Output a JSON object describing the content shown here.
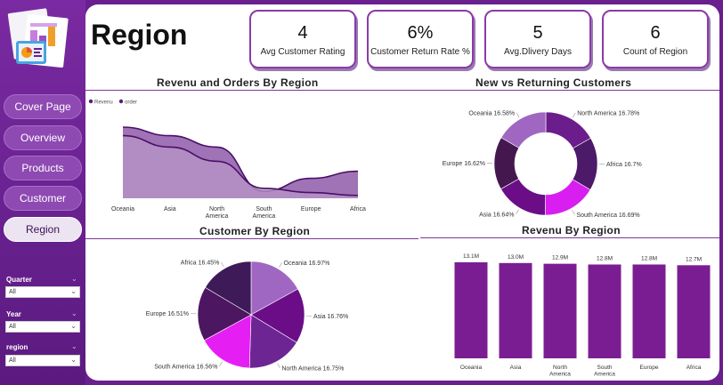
{
  "nav": {
    "items": [
      {
        "label": "Cover Page",
        "active": false
      },
      {
        "label": "Overview",
        "active": false
      },
      {
        "label": "Products",
        "active": false
      },
      {
        "label": "Customer",
        "active": false
      },
      {
        "label": "Region",
        "active": true
      }
    ]
  },
  "filters": [
    {
      "label": "Quarter",
      "value": "All"
    },
    {
      "label": "Year",
      "value": "All"
    },
    {
      "label": "region",
      "value": "All"
    }
  ],
  "page_title": "Region",
  "kpis": [
    {
      "value": "4",
      "label": "Avg Customer Rating"
    },
    {
      "value": "6%",
      "label": "Customer Return Rate %"
    },
    {
      "value": "5",
      "label": "Avg.Dlivery Days"
    },
    {
      "value": "6",
      "label": "Count of Region"
    }
  ],
  "colors": {
    "sidebar": "#6a1f8f",
    "accent": "#5b1a80",
    "bar": "#7b1d92",
    "area_revenue": "#8e5aa8",
    "area_order": "#b796c8"
  },
  "chart_data": [
    {
      "id": "revenue_orders",
      "type": "area",
      "title": "Revenu and Orders By Region",
      "categories": [
        "Oceania",
        "Asia",
        "North America",
        "South America",
        "Europe",
        "Africa"
      ],
      "series": [
        {
          "name": "Revenu",
          "values": [
            100,
            88,
            72,
            10,
            28,
            38
          ]
        },
        {
          "name": "order",
          "values": [
            88,
            72,
            52,
            14,
            8,
            4
          ]
        }
      ],
      "legend_position": "top-left",
      "ylim": [
        0,
        110
      ]
    },
    {
      "id": "new_returning",
      "type": "pie",
      "donut": true,
      "title": "New vs Returning Customers",
      "labels": [
        "North America",
        "Africa",
        "South America",
        "Asia",
        "Europe",
        "Oceania"
      ],
      "values": [
        16.78,
        16.7,
        16.69,
        16.64,
        16.62,
        16.58
      ],
      "display": [
        "North America 16.78%",
        "Africa 16.7%",
        "South America 16.69%",
        "Asia 16.64%",
        "Europe 16.62%",
        "Oceania 16.58%"
      ],
      "colors": [
        "#6c1d8c",
        "#4c1a68",
        "#d81ef0",
        "#6a0d86",
        "#45174f",
        "#a067c2"
      ]
    },
    {
      "id": "customer_region",
      "type": "pie",
      "title": "Customer By Region",
      "labels": [
        "Oceania",
        "Asia",
        "North America",
        "South America",
        "Europe",
        "Africa"
      ],
      "values": [
        16.97,
        16.76,
        16.75,
        16.56,
        16.51,
        16.45
      ],
      "display": [
        "Oceania 16.97%",
        "Asia 16.76%",
        "North America 16.75%",
        "South America 16.56%",
        "Europe 16.51%",
        "Africa 16.45%"
      ],
      "colors": [
        "#a067c2",
        "#6a0d86",
        "#6e2594",
        "#e51ef4",
        "#4d1660",
        "#3e1a58"
      ]
    },
    {
      "id": "revenue_region",
      "type": "bar",
      "title": "Revenu By Region",
      "categories": [
        "Oceania",
        "Asia",
        "North America",
        "South America",
        "Europe",
        "Africa"
      ],
      "values": [
        13.1,
        13.0,
        12.9,
        12.8,
        12.8,
        12.7
      ],
      "data_labels": [
        "13.1M",
        "13.0M",
        "12.9M",
        "12.8M",
        "12.8M",
        "12.7M"
      ],
      "ylim": [
        0,
        13.1
      ]
    }
  ]
}
